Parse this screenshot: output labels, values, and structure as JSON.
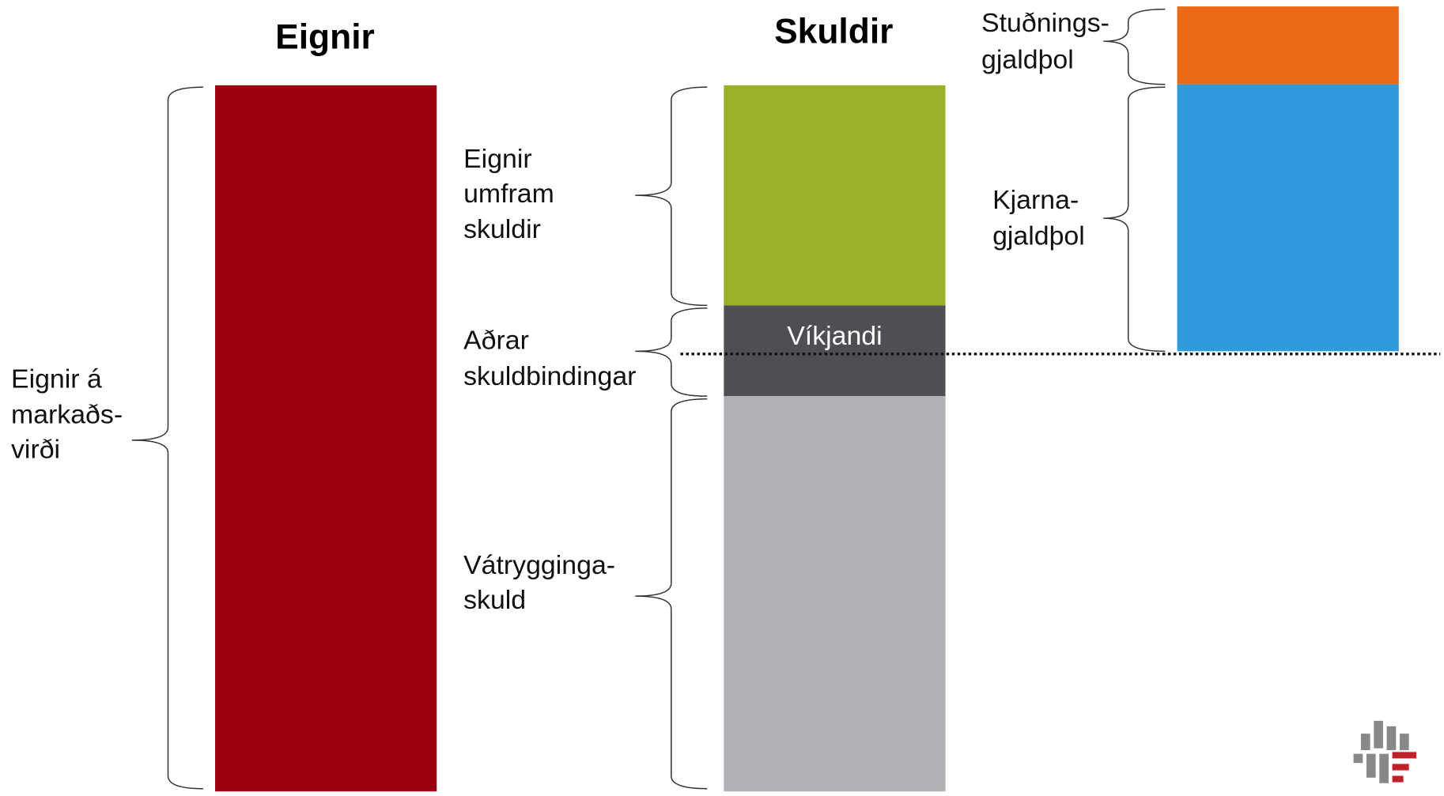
{
  "titles": {
    "assets": "Eignir",
    "liabilities": "Skuldir"
  },
  "labels": {
    "assets_market_value": [
      "Eignir á",
      "markaðs-",
      "virði"
    ],
    "excess_of_assets": [
      "Eignir",
      "umfram",
      "skuldir"
    ],
    "other_liabilities": [
      "Aðrar",
      "skuldbindingar"
    ],
    "technical_provisions": [
      "Vátrygginga-",
      "skuld"
    ],
    "ancillary_own_funds": [
      "Stuðnings-",
      "gjaldþol"
    ],
    "basic_own_funds": [
      "Kjarna-",
      "gjaldþol"
    ]
  },
  "subordinated": "Víkjandi"
}
